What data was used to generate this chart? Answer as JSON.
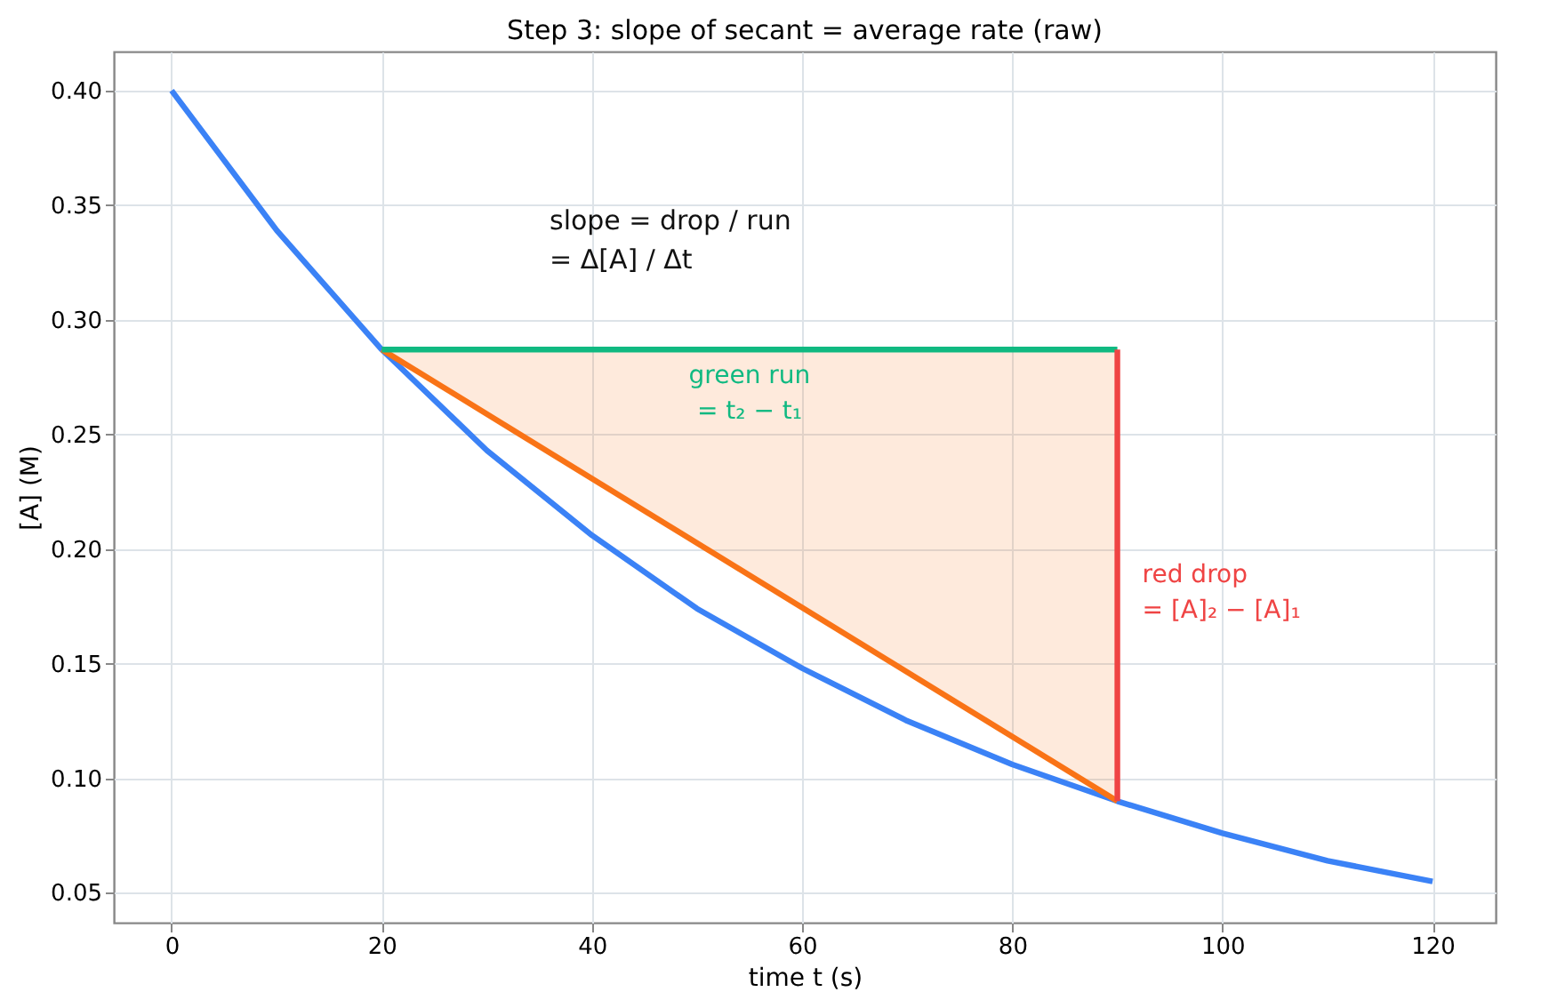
{
  "chart_data": {
    "type": "line",
    "title": "Step 3: slope of secant = average rate (raw)",
    "xlabel": "time  t  (s)",
    "ylabel": "[A]  (M)",
    "series": [
      {
        "color": "#3b82f6",
        "x": [
          0,
          10,
          20,
          30,
          40,
          50,
          60,
          70,
          80,
          90,
          100,
          110,
          120
        ],
        "values": [
          0.4,
          0.339,
          0.287,
          0.243,
          0.206,
          0.174,
          0.148,
          0.125,
          0.106,
          0.09,
          0.076,
          0.064,
          0.055
        ]
      },
      {
        "color": "#f97316",
        "x": [
          20,
          90
        ],
        "values": [
          0.287,
          0.09
        ],
        "lower": [
          0.287,
          0.09
        ],
        "upper": [
          0.287,
          0.287
        ]
      },
      {
        "name": "green run\n= t₂ − t₁",
        "color": "#10b981",
        "x": [
          20,
          90
        ],
        "values": [
          0.287,
          0.287
        ]
      },
      {
        "name": "red drop\n= [A]₂ − [A]₁",
        "color": "#ef4444",
        "x": [
          90,
          90
        ],
        "values": [
          0.09,
          0.287
        ]
      }
    ],
    "annotations": [
      "slope = drop / run\n= Δ[A] / Δt"
    ],
    "xlim": [
      -5.5,
      126
    ],
    "ylim": [
      0.037,
      0.417
    ],
    "xticks": [
      0,
      20,
      40,
      60,
      80,
      100,
      120
    ],
    "yticks": [
      0.05,
      {
        "value": 0.1,
        "label": "0.10"
      },
      0.15,
      {
        "value": 0.2,
        "label": "0.20"
      },
      0.25,
      {
        "value": 0.3,
        "label": "0.30"
      },
      0.35,
      {
        "value": 0.4,
        "label": "0.40"
      }
    ],
    "grid": true,
    "legend": false
  }
}
